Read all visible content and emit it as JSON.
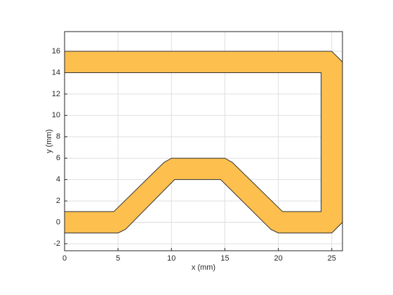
{
  "chart_data": {
    "type": "polygon",
    "x": [
      0,
      4.6,
      9.3,
      10,
      15,
      15.7,
      20.4,
      24,
      24,
      0,
      0,
      25,
      26,
      26,
      25,
      20,
      19.3,
      14.6,
      10.3,
      5.7,
      5,
      0
    ],
    "y": [
      1,
      1,
      5.6,
      6,
      6,
      5.6,
      1,
      1,
      14,
      14,
      16,
      16,
      15,
      0,
      -1,
      -1,
      -0.66,
      4,
      4,
      -0.66,
      -1,
      -1
    ],
    "color": "#fdbf4e",
    "edge_color": "#333333",
    "xlabel": "x (mm)",
    "ylabel": "y (mm)",
    "xlim": [
      0,
      26
    ],
    "ylim": [
      -2.66,
      17.84
    ],
    "xticks": [
      0,
      5,
      10,
      15,
      20,
      25
    ],
    "yticks": [
      -2,
      0,
      2,
      4,
      6,
      8,
      10,
      12,
      14,
      16
    ],
    "grid": true
  }
}
